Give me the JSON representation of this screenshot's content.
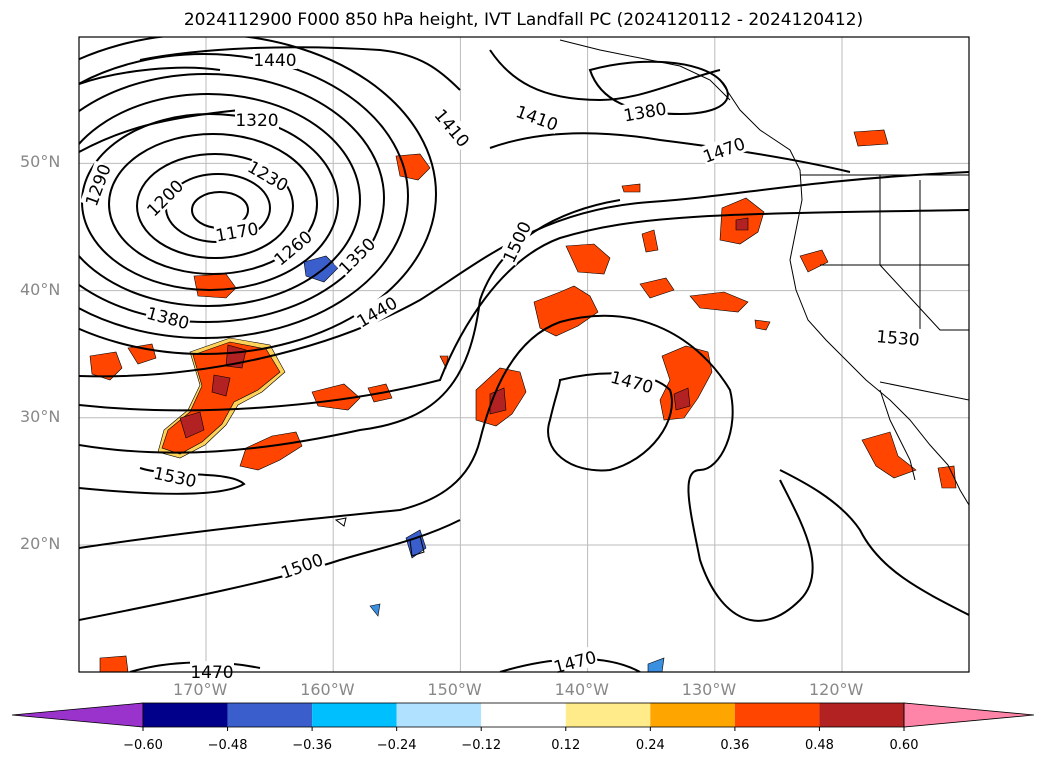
{
  "title": "2024112900 F000 850 hPa height, IVT Landfall PC (2024120112 - 2024120412)",
  "lat_labels": [
    {
      "text": "50°N",
      "lat": 50
    },
    {
      "text": "40°N",
      "lat": 40
    },
    {
      "text": "30°N",
      "lat": 30
    },
    {
      "text": "20°N",
      "lat": 20
    }
  ],
  "lon_labels": [
    {
      "text": "170°W",
      "lon": -170
    },
    {
      "text": "160°W",
      "lon": -160
    },
    {
      "text": "150°W",
      "lon": -150
    },
    {
      "text": "140°W",
      "lon": -140
    },
    {
      "text": "130°W",
      "lon": -130
    },
    {
      "text": "120°W",
      "lon": -120
    }
  ],
  "contour_labels": [
    "1440",
    "1320",
    "1410",
    "1410",
    "1380",
    "1470",
    "1290",
    "1230",
    "1200",
    "1170",
    "1260",
    "1350",
    "1500",
    "1440",
    "1380",
    "1470",
    "1530",
    "1530",
    "1500",
    "1470",
    "1470"
  ],
  "colorbar": {
    "ticks": [
      "−0.60",
      "−0.48",
      "−0.36",
      "−0.24",
      "−0.12",
      "0.12",
      "0.24",
      "0.36",
      "0.48",
      "0.60"
    ],
    "colors": [
      "#9933cc",
      "#00008b",
      "#3a5fcd",
      "#00bfff",
      "#b0e2ff",
      "#ffffff",
      "#ffeb8a",
      "#ffa500",
      "#ff4500",
      "#b22222",
      "#ff85a8"
    ]
  },
  "colors": {
    "positive_fill": "#ff4500",
    "strong_positive_fill": "#b22222",
    "edge_fill": "#ffa500",
    "negative_fill": "#3a8fe0",
    "grid": "#bbbbbb"
  }
}
